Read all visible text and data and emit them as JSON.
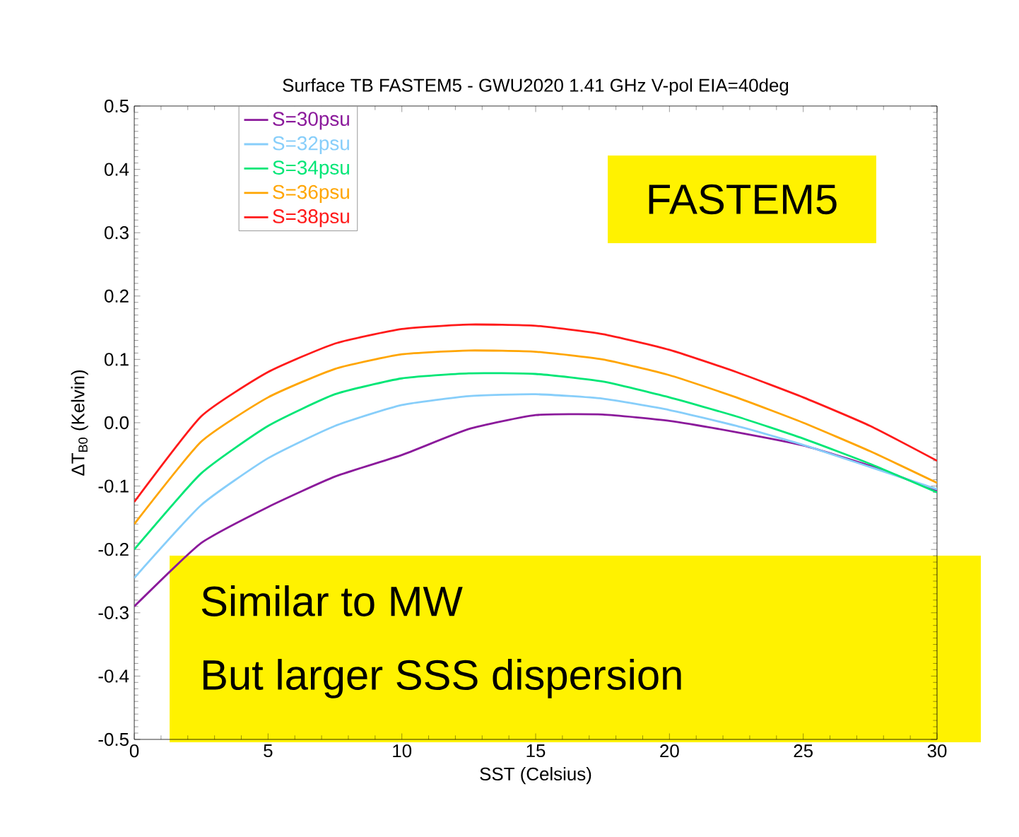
{
  "chart_data": {
    "type": "line",
    "title": "Surface TB  FASTEM5 - GWU2020 1.41 GHz V-pol EIA=40deg",
    "xlabel": "SST (Celsius)",
    "ylabel": "ΔT$_{B0}$ (Kelvin)",
    "x": [
      0,
      2.5,
      5,
      7.5,
      10,
      12.5,
      15,
      17.5,
      20,
      22.5,
      25,
      27.5,
      30
    ],
    "series": [
      {
        "name": "S=30psu",
        "color": "#8b1a9b",
        "values": [
          -0.29,
          -0.19,
          -0.133,
          -0.085,
          -0.051,
          -0.01,
          0.012,
          0.013,
          0.003,
          -0.015,
          -0.036,
          -0.068,
          -0.107
        ]
      },
      {
        "name": "S=32psu",
        "color": "#87cefa",
        "values": [
          -0.245,
          -0.13,
          -0.056,
          -0.005,
          0.028,
          0.042,
          0.045,
          0.038,
          0.02,
          -0.005,
          -0.035,
          -0.07,
          -0.105
        ]
      },
      {
        "name": "S=34psu",
        "color": "#00e676",
        "values": [
          -0.2,
          -0.08,
          -0.005,
          0.045,
          0.07,
          0.078,
          0.077,
          0.065,
          0.04,
          0.01,
          -0.025,
          -0.065,
          -0.11
        ]
      },
      {
        "name": "S=36psu",
        "color": "#ffa500",
        "values": [
          -0.16,
          -0.03,
          0.04,
          0.085,
          0.108,
          0.114,
          0.112,
          0.1,
          0.075,
          0.04,
          0.0,
          -0.045,
          -0.095
        ]
      },
      {
        "name": "S=38psu",
        "color": "#ff1a1a",
        "values": [
          -0.125,
          0.01,
          0.08,
          0.125,
          0.148,
          0.155,
          0.153,
          0.14,
          0.115,
          0.08,
          0.04,
          -0.005,
          -0.06
        ]
      }
    ],
    "xlim": [
      0,
      30
    ],
    "xticks": [
      0,
      5,
      10,
      15,
      20,
      25,
      30
    ],
    "ylim": [
      -0.5,
      0.5
    ],
    "yticks": [
      -0.5,
      -0.4,
      -0.3,
      -0.2,
      -0.1,
      {
        "value": 0,
        "label": "0.0"
      },
      0.1,
      0.2,
      0.3,
      0.4,
      0.5
    ],
    "legend": "top left",
    "grid": false,
    "marker": "none",
    "line_style": "solid",
    "annotations": [
      "FASTEM5",
      "Similar to MW",
      "But larger SSS dispersion"
    ]
  }
}
